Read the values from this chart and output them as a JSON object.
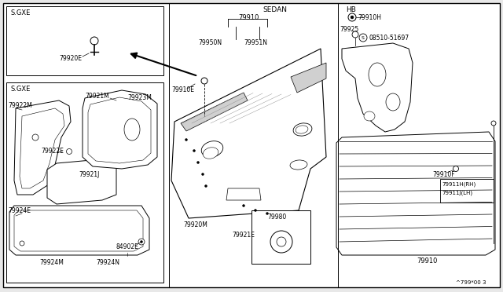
{
  "bg_color": "#e8e8e8",
  "diagram_bg": "#ffffff",
  "border_color": "#000000",
  "line_color": "#000000",
  "text_color": "#000000",
  "fig_width": 6.4,
  "fig_height": 3.72,
  "footer": "^799*00 3",
  "labels": {
    "sedan": "SEDAN",
    "hb": "HB",
    "sgxe1": "S.GXE",
    "sgxe2": "S.GXE",
    "part_79910": "79910",
    "part_79910E": "79910E",
    "part_79910H": "79910H",
    "part_79910F": "79910F",
    "part_79920E": "79920E",
    "part_79920M": "79920M",
    "part_79921E": "79921E",
    "part_79921M": "79921M",
    "part_79921J": "79921J",
    "part_79922M": "79922M",
    "part_79922E": "79922E",
    "part_79923M": "79923M",
    "part_79924E": "79924E",
    "part_79924M": "79924M",
    "part_79924N": "79924N",
    "part_79925": "79925",
    "part_79950N": "79950N",
    "part_79951N": "79951N",
    "part_79980": "79980",
    "part_84902E": "84902E",
    "part_79911H": "79911H(RH)",
    "part_79911J": "79911J(LH)",
    "bolt_ref": "S 08510-51697"
  }
}
